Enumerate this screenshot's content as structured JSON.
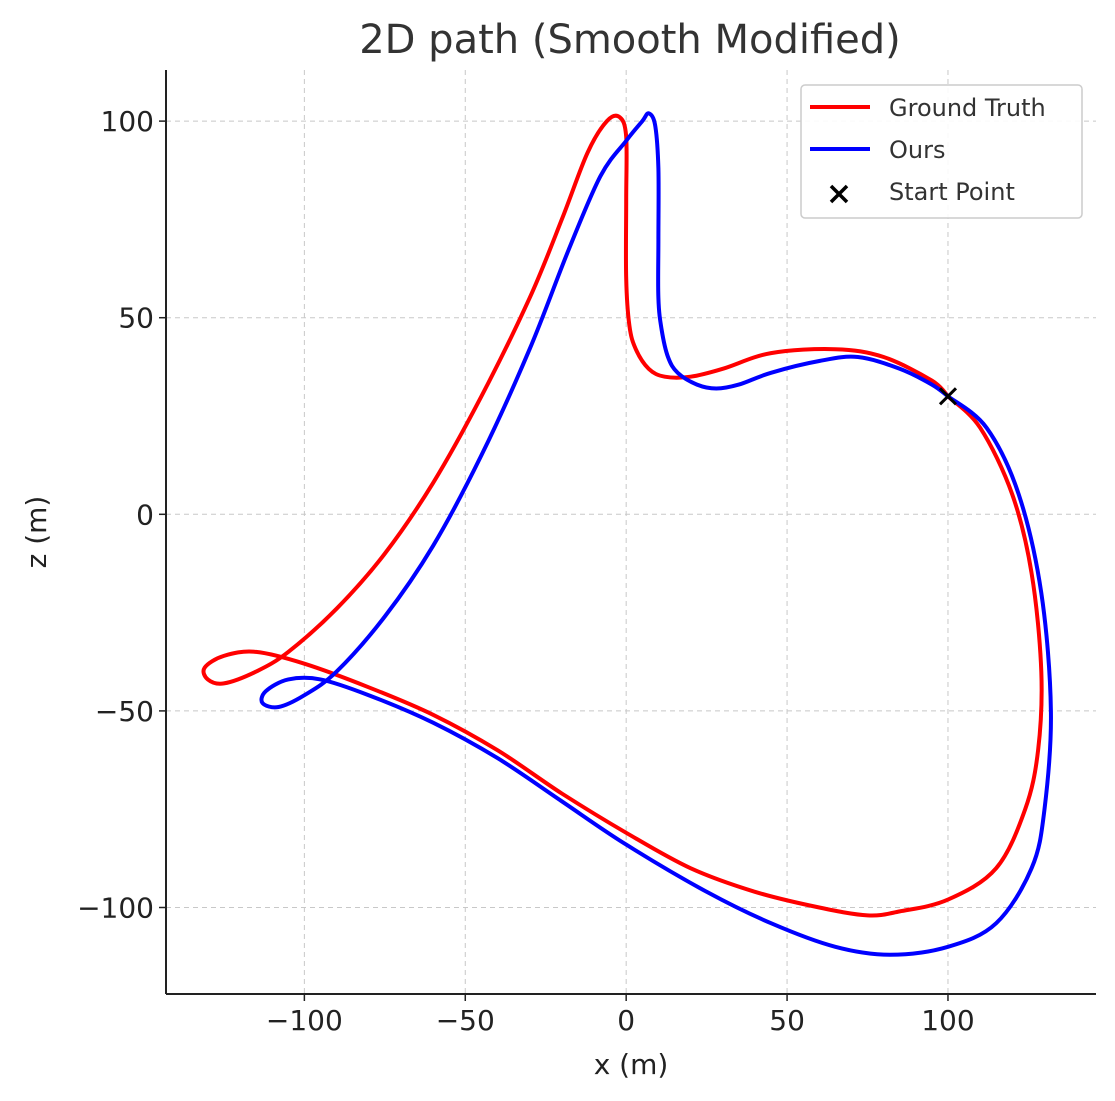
{
  "chart_data": {
    "type": "line",
    "title": "2D path (Smooth Modified)",
    "xlabel": "x (m)",
    "ylabel": "z (m)",
    "xlim": [
      -143,
      146
    ],
    "ylim": [
      -122,
      113
    ],
    "xticks": [
      -100,
      -50,
      0,
      50,
      100
    ],
    "yticks": [
      -100,
      -50,
      0,
      50,
      100
    ],
    "xtick_labels": [
      "−100",
      "−50",
      "0",
      "50",
      "100"
    ],
    "ytick_labels": [
      "−100",
      "−50",
      "0",
      "50",
      "100"
    ],
    "grid": true,
    "legend_position": "top-right",
    "series": [
      {
        "name": "Ground Truth",
        "color": "#ff0000",
        "points": [
          [
            100,
            30
          ],
          [
            110,
            22
          ],
          [
            120,
            5
          ],
          [
            126,
            -15
          ],
          [
            129,
            -40
          ],
          [
            128,
            -60
          ],
          [
            124,
            -75
          ],
          [
            115,
            -90
          ],
          [
            100,
            -98
          ],
          [
            85,
            -101
          ],
          [
            75,
            -102
          ],
          [
            60,
            -100
          ],
          [
            40,
            -96
          ],
          [
            20,
            -90
          ],
          [
            0,
            -81
          ],
          [
            -20,
            -71
          ],
          [
            -40,
            -60
          ],
          [
            -60,
            -51
          ],
          [
            -80,
            -44
          ],
          [
            -100,
            -38
          ],
          [
            -115,
            -35
          ],
          [
            -125,
            -36
          ],
          [
            -131,
            -39
          ],
          [
            -130,
            -42
          ],
          [
            -125,
            -43
          ],
          [
            -115,
            -40
          ],
          [
            -105,
            -35
          ],
          [
            -90,
            -24
          ],
          [
            -75,
            -10
          ],
          [
            -60,
            8
          ],
          [
            -45,
            30
          ],
          [
            -30,
            55
          ],
          [
            -20,
            75
          ],
          [
            -12,
            92
          ],
          [
            -6,
            100
          ],
          [
            -2,
            101
          ],
          [
            0,
            96
          ],
          [
            0,
            80
          ],
          [
            0,
            60
          ],
          [
            1,
            48
          ],
          [
            3,
            42
          ],
          [
            7,
            37
          ],
          [
            12,
            35
          ],
          [
            20,
            35
          ],
          [
            30,
            37
          ],
          [
            45,
            41
          ],
          [
            65,
            42
          ],
          [
            80,
            40
          ],
          [
            95,
            34
          ],
          [
            100,
            30
          ]
        ]
      },
      {
        "name": "Ours",
        "color": "#0000ff",
        "points": [
          [
            100,
            30
          ],
          [
            112,
            22
          ],
          [
            122,
            5
          ],
          [
            129,
            -20
          ],
          [
            132,
            -50
          ],
          [
            130,
            -75
          ],
          [
            126,
            -90
          ],
          [
            115,
            -104
          ],
          [
            100,
            -110
          ],
          [
            82,
            -112
          ],
          [
            65,
            -110
          ],
          [
            45,
            -104
          ],
          [
            25,
            -96
          ],
          [
            0,
            -84
          ],
          [
            -20,
            -73
          ],
          [
            -40,
            -62
          ],
          [
            -60,
            -53
          ],
          [
            -80,
            -46
          ],
          [
            -95,
            -42
          ],
          [
            -105,
            -42
          ],
          [
            -112,
            -45
          ],
          [
            -113,
            -48
          ],
          [
            -108,
            -49
          ],
          [
            -100,
            -46
          ],
          [
            -90,
            -40
          ],
          [
            -75,
            -26
          ],
          [
            -60,
            -8
          ],
          [
            -45,
            15
          ],
          [
            -30,
            42
          ],
          [
            -18,
            67
          ],
          [
            -8,
            86
          ],
          [
            0,
            95
          ],
          [
            5,
            100
          ],
          [
            7,
            102
          ],
          [
            9,
            99
          ],
          [
            10,
            88
          ],
          [
            10,
            70
          ],
          [
            10,
            55
          ],
          [
            11,
            47
          ],
          [
            13,
            40
          ],
          [
            16,
            36
          ],
          [
            22,
            33
          ],
          [
            28,
            32
          ],
          [
            35,
            33
          ],
          [
            45,
            36
          ],
          [
            60,
            39
          ],
          [
            72,
            40
          ],
          [
            85,
            37
          ],
          [
            95,
            33
          ],
          [
            100,
            30
          ]
        ]
      }
    ],
    "markers": [
      {
        "name": "Start Point",
        "marker": "x",
        "color": "#000000",
        "x": 100,
        "y": 30
      }
    ]
  }
}
